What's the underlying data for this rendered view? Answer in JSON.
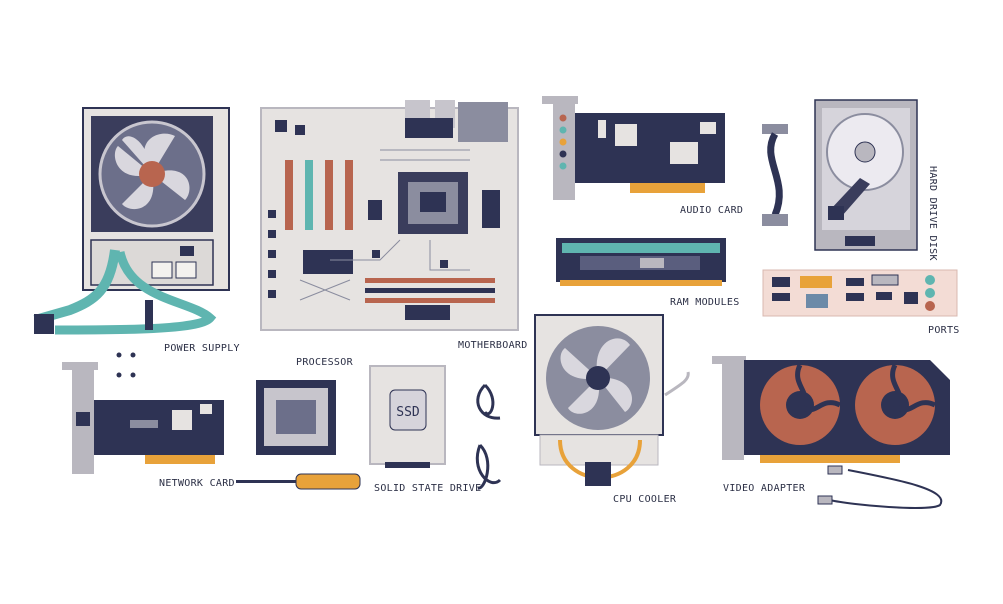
{
  "labels": {
    "power_supply": "POWER SUPPLY",
    "motherboard": "MOTHERBOARD",
    "audio_card": "AUDIO CARD",
    "hard_drive_disk": "HARD DRIVE DISK",
    "ram_modules": "RAM MODULES",
    "ports": "PORTS",
    "processor": "PROCESSOR",
    "network_card": "NETWORK CARD",
    "solid_state_drive": "SOLID STATE DRIVE",
    "cpu_cooler": "CPU COOLER",
    "video_adapter": "VIDEO ADAPTER",
    "ssd_mark": "SSD"
  },
  "colors": {
    "navy": "#2e3354",
    "light_gray": "#e6e3e1",
    "mid_gray": "#b9b7bf",
    "teal": "#5fb5b0",
    "orange": "#e8a23a",
    "rust": "#b8654f",
    "pink": "#f3dcd5"
  }
}
